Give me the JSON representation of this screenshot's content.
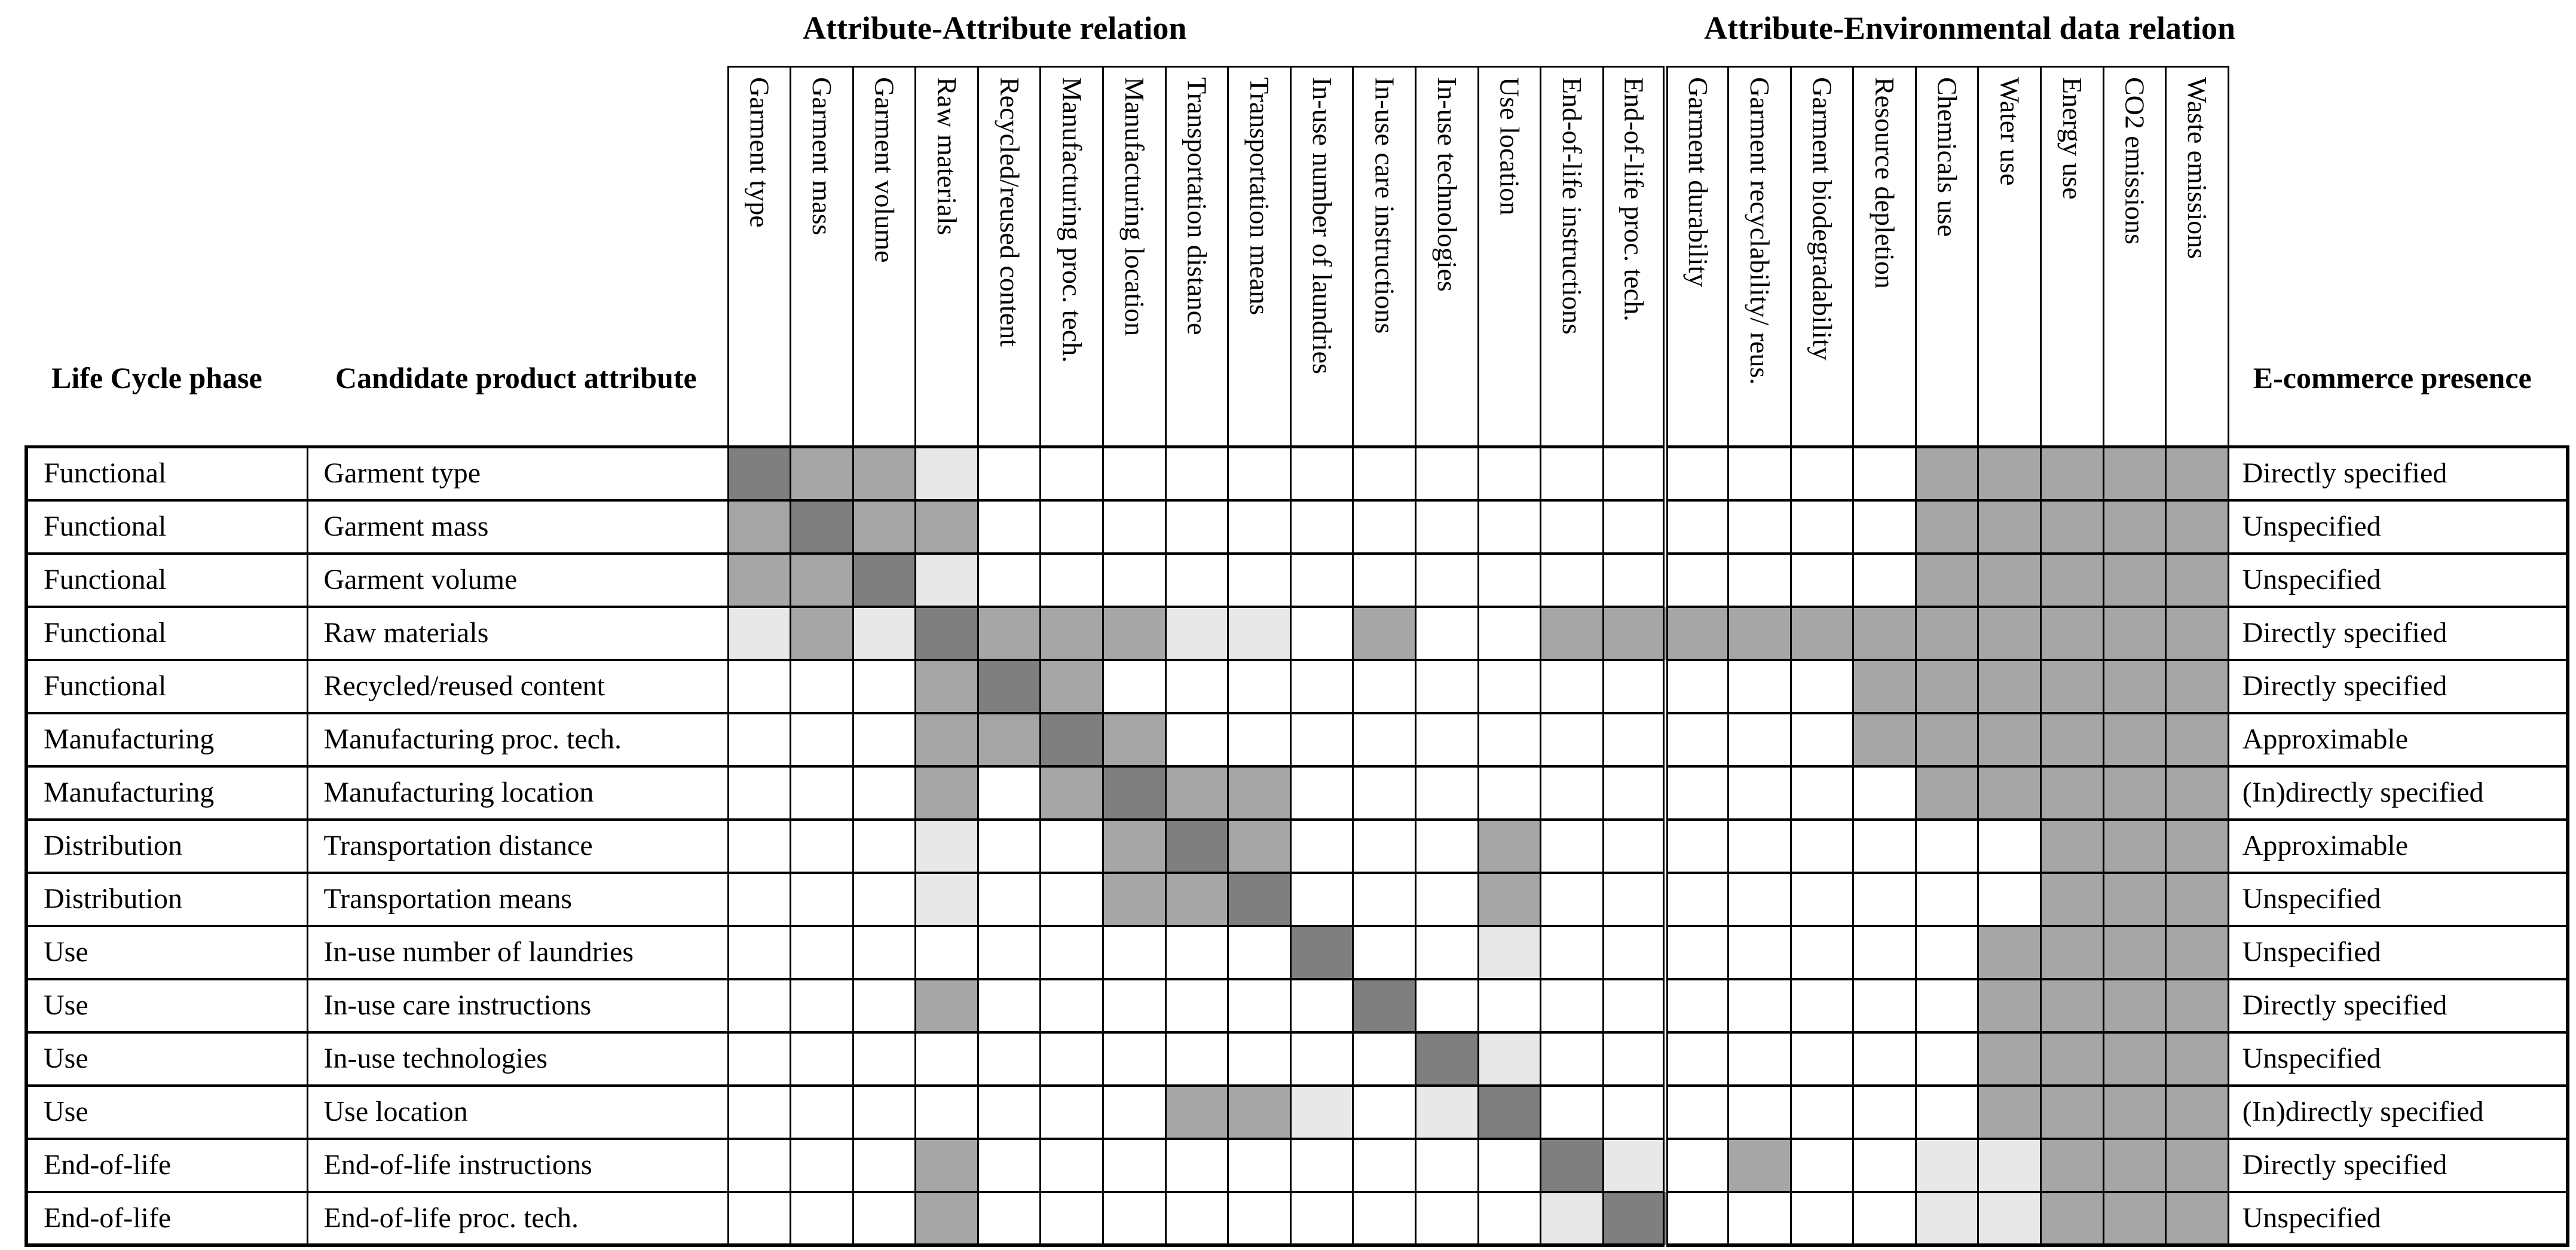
{
  "group_titles": [
    {
      "label": "Attribute-Attribute relation"
    },
    {
      "label": "Attribute-Environmental data relation"
    }
  ],
  "corner_headers": {
    "life_cycle_phase": "Life Cycle phase",
    "candidate_product_attribute": "Candidate product attribute",
    "ecommerce_presence": "E-commerce presence"
  },
  "matrix_columns": {
    "attribute_attribute": [
      "Garment type",
      "Garment mass",
      "Garment volume",
      "Raw materials",
      "Recycled/reused content",
      "Manufacturing proc. tech.",
      "Manufacturing location",
      "Transportation distance",
      "Transportation means",
      "In-use number of laundries",
      "In-use care instructions",
      "In-use technologies",
      "Use location",
      "End-of-life instructions",
      "End-of-life proc. tech."
    ],
    "attribute_environmental": [
      "Garment durability",
      "Garment recyclability/ reus.",
      "Garment biodegradability",
      "Resource depletion",
      "Chemicals use",
      "Water use",
      "Energy use",
      "CO2 emissions",
      "Waste emissions"
    ]
  },
  "shade_colors": {
    "0": "#ffffff",
    "L": "#e8e8e8",
    "M": "#a6a6a6",
    "D": "#7f7f7f",
    "border": "#000000"
  },
  "rows": [
    {
      "phase": "Functional",
      "attribute": "Garment type",
      "ecommerce": "Directly specified",
      "cells": [
        "D",
        "M",
        "M",
        "L",
        "0",
        "0",
        "0",
        "0",
        "0",
        "0",
        "0",
        "0",
        "0",
        "0",
        "0",
        "0",
        "0",
        "0",
        "0",
        "M",
        "M",
        "M",
        "M",
        "M"
      ]
    },
    {
      "phase": "Functional",
      "attribute": "Garment mass",
      "ecommerce": "Unspecified",
      "cells": [
        "M",
        "D",
        "M",
        "M",
        "0",
        "0",
        "0",
        "0",
        "0",
        "0",
        "0",
        "0",
        "0",
        "0",
        "0",
        "0",
        "0",
        "0",
        "0",
        "M",
        "M",
        "M",
        "M",
        "M"
      ]
    },
    {
      "phase": "Functional",
      "attribute": "Garment volume",
      "ecommerce": "Unspecified",
      "cells": [
        "M",
        "M",
        "D",
        "L",
        "0",
        "0",
        "0",
        "0",
        "0",
        "0",
        "0",
        "0",
        "0",
        "0",
        "0",
        "0",
        "0",
        "0",
        "0",
        "M",
        "M",
        "M",
        "M",
        "M"
      ]
    },
    {
      "phase": "Functional",
      "attribute": "Raw materials",
      "ecommerce": "Directly specified",
      "cells": [
        "L",
        "M",
        "L",
        "D",
        "M",
        "M",
        "M",
        "L",
        "L",
        "0",
        "M",
        "0",
        "0",
        "M",
        "M",
        "M",
        "M",
        "M",
        "M",
        "M",
        "M",
        "M",
        "M",
        "M"
      ]
    },
    {
      "phase": "Functional",
      "attribute": "Recycled/reused content",
      "ecommerce": "Directly specified",
      "cells": [
        "0",
        "0",
        "0",
        "M",
        "D",
        "M",
        "0",
        "0",
        "0",
        "0",
        "0",
        "0",
        "0",
        "0",
        "0",
        "0",
        "0",
        "0",
        "M",
        "M",
        "M",
        "M",
        "M",
        "M"
      ]
    },
    {
      "phase": "Manufacturing",
      "attribute": "Manufacturing proc. tech.",
      "ecommerce": "Approximable",
      "cells": [
        "0",
        "0",
        "0",
        "M",
        "M",
        "D",
        "M",
        "0",
        "0",
        "0",
        "0",
        "0",
        "0",
        "0",
        "0",
        "0",
        "0",
        "0",
        "M",
        "M",
        "M",
        "M",
        "M",
        "M"
      ]
    },
    {
      "phase": "Manufacturing",
      "attribute": "Manufacturing location",
      "ecommerce": "(In)directly specified",
      "cells": [
        "0",
        "0",
        "0",
        "M",
        "0",
        "M",
        "D",
        "M",
        "M",
        "0",
        "0",
        "0",
        "0",
        "0",
        "0",
        "0",
        "0",
        "0",
        "0",
        "M",
        "M",
        "M",
        "M",
        "M"
      ]
    },
    {
      "phase": "Distribution",
      "attribute": "Transportation distance",
      "ecommerce": "Approximable",
      "cells": [
        "0",
        "0",
        "0",
        "L",
        "0",
        "0",
        "M",
        "D",
        "M",
        "0",
        "0",
        "0",
        "M",
        "0",
        "0",
        "0",
        "0",
        "0",
        "0",
        "0",
        "0",
        "M",
        "M",
        "M"
      ]
    },
    {
      "phase": "Distribution",
      "attribute": "Transportation means",
      "ecommerce": "Unspecified",
      "cells": [
        "0",
        "0",
        "0",
        "L",
        "0",
        "0",
        "M",
        "M",
        "D",
        "0",
        "0",
        "0",
        "M",
        "0",
        "0",
        "0",
        "0",
        "0",
        "0",
        "0",
        "0",
        "M",
        "M",
        "M"
      ]
    },
    {
      "phase": "Use",
      "attribute": "In-use number of laundries",
      "ecommerce": "Unspecified",
      "cells": [
        "0",
        "0",
        "0",
        "0",
        "0",
        "0",
        "0",
        "0",
        "0",
        "D",
        "0",
        "0",
        "L",
        "0",
        "0",
        "0",
        "0",
        "0",
        "0",
        "0",
        "M",
        "M",
        "M",
        "M"
      ]
    },
    {
      "phase": "Use",
      "attribute": "In-use care instructions",
      "ecommerce": "Directly specified",
      "cells": [
        "0",
        "0",
        "0",
        "M",
        "0",
        "0",
        "0",
        "0",
        "0",
        "0",
        "D",
        "0",
        "0",
        "0",
        "0",
        "0",
        "0",
        "0",
        "0",
        "0",
        "M",
        "M",
        "M",
        "M"
      ]
    },
    {
      "phase": "Use",
      "attribute": "In-use technologies",
      "ecommerce": "Unspecified",
      "cells": [
        "0",
        "0",
        "0",
        "0",
        "0",
        "0",
        "0",
        "0",
        "0",
        "0",
        "0",
        "D",
        "L",
        "0",
        "0",
        "0",
        "0",
        "0",
        "0",
        "0",
        "M",
        "M",
        "M",
        "M"
      ]
    },
    {
      "phase": "Use",
      "attribute": "Use location",
      "ecommerce": "(In)directly specified",
      "cells": [
        "0",
        "0",
        "0",
        "0",
        "0",
        "0",
        "0",
        "M",
        "M",
        "L",
        "0",
        "L",
        "D",
        "0",
        "0",
        "0",
        "0",
        "0",
        "0",
        "0",
        "M",
        "M",
        "M",
        "M"
      ]
    },
    {
      "phase": "End-of-life",
      "attribute": "End-of-life instructions",
      "ecommerce": "Directly specified",
      "cells": [
        "0",
        "0",
        "0",
        "M",
        "0",
        "0",
        "0",
        "0",
        "0",
        "0",
        "0",
        "0",
        "0",
        "D",
        "L",
        "0",
        "M",
        "0",
        "0",
        "L",
        "L",
        "M",
        "M",
        "M"
      ]
    },
    {
      "phase": "End-of-life",
      "attribute": "End-of-life proc. tech.",
      "ecommerce": "Unspecified",
      "cells": [
        "0",
        "0",
        "0",
        "M",
        "0",
        "0",
        "0",
        "0",
        "0",
        "0",
        "0",
        "0",
        "0",
        "L",
        "D",
        "0",
        "0",
        "0",
        "0",
        "L",
        "L",
        "M",
        "M",
        "M"
      ]
    }
  ]
}
